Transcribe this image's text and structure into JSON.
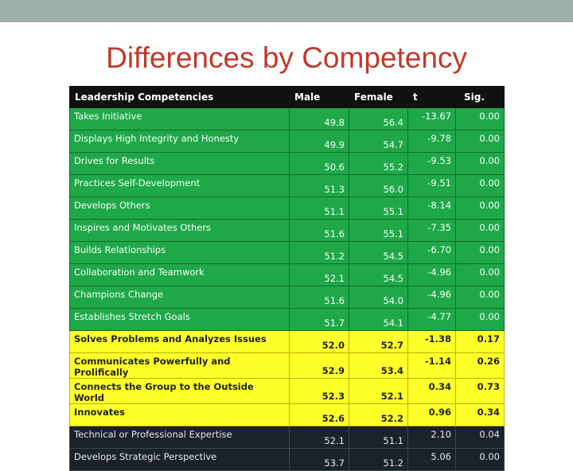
{
  "slide": {
    "title": "Differences by Competency"
  },
  "table": {
    "headers": [
      "Leadership Competencies",
      "Male",
      "Female",
      "t",
      "Sig."
    ],
    "rows": [
      {
        "name": "Takes Initiative",
        "male": "49.8",
        "female": "56.4",
        "t": "-13.67",
        "sig": "0.00",
        "group": "green"
      },
      {
        "name": "Displays High Integrity and Honesty",
        "male": "49.9",
        "female": "54.7",
        "t": "-9.78",
        "sig": "0.00",
        "group": "green"
      },
      {
        "name": "Drives for Results",
        "male": "50.6",
        "female": "55.2",
        "t": "-9.53",
        "sig": "0.00",
        "group": "green"
      },
      {
        "name": "Practices Self-Development",
        "male": "51.3",
        "female": "56.0",
        "t": "-9.51",
        "sig": "0.00",
        "group": "green"
      },
      {
        "name": "Develops Others",
        "male": "51.1",
        "female": "55.1",
        "t": "-8.14",
        "sig": "0.00",
        "group": "green"
      },
      {
        "name": "Inspires and Motivates Others",
        "male": "51.6",
        "female": "55.1",
        "t": "-7.35",
        "sig": "0.00",
        "group": "green"
      },
      {
        "name": "Builds Relationships",
        "male": "51.2",
        "female": "54.5",
        "t": "-6.70",
        "sig": "0.00",
        "group": "green"
      },
      {
        "name": "Collaboration and Teamwork",
        "male": "52.1",
        "female": "54.5",
        "t": "-4.96",
        "sig": "0.00",
        "group": "green"
      },
      {
        "name": "Champions Change",
        "male": "51.6",
        "female": "54.0",
        "t": "-4.96",
        "sig": "0.00",
        "group": "green"
      },
      {
        "name": "Establishes Stretch Goals",
        "male": "51.7",
        "female": "54.1",
        "t": "-4.77",
        "sig": "0.00",
        "group": "green"
      },
      {
        "name": "Solves Problems and Analyzes Issues",
        "male": "52.0",
        "female": "52.7",
        "t": "-1.38",
        "sig": "0.17",
        "group": "yellow"
      },
      {
        "name": "Communicates Powerfully and Prolifically",
        "male": "52.9",
        "female": "53.4",
        "t": "-1.14",
        "sig": "0.26",
        "group": "yellow"
      },
      {
        "name": "Connects the Group to the Outside World",
        "male": "52.3",
        "female": "52.1",
        "t": "0.34",
        "sig": "0.73",
        "group": "yellow"
      },
      {
        "name": "Innovates",
        "male": "52.6",
        "female": "52.2",
        "t": "0.96",
        "sig": "0.34",
        "group": "yellow"
      },
      {
        "name": "Technical or Professional Expertise",
        "male": "52.1",
        "female": "51.1",
        "t": "2.10",
        "sig": "0.04",
        "group": "dark"
      },
      {
        "name": "Develops Strategic Perspective",
        "male": "53.7",
        "female": "51.2",
        "t": "5.06",
        "sig": "0.00",
        "group": "dark"
      }
    ]
  },
  "colors": {
    "title": "#c0392b",
    "top_bar": "#9fb0aa",
    "header_bg": "#111111",
    "green": "#1fa84a",
    "yellow": "#ffff2a",
    "dark": "#1a222a"
  }
}
